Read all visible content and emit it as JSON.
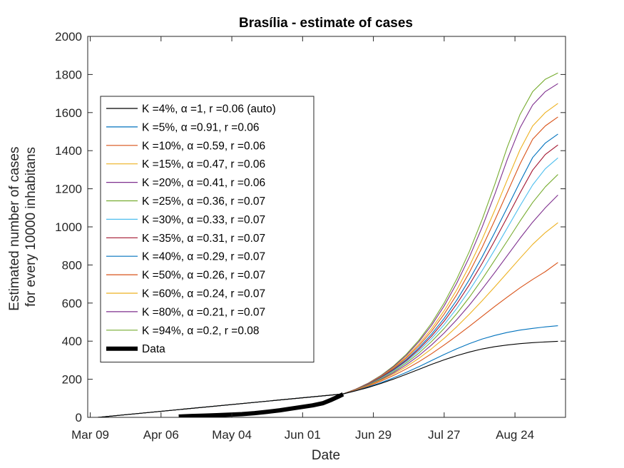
{
  "chart_data": {
    "type": "line",
    "title": "Brasília - estimate of cases",
    "xlabel": "Date",
    "ylabel": [
      "Estimated number of cases",
      "for every 10000 inhabitans"
    ],
    "x_ticks": [
      "Mar 09",
      "Apr 06",
      "May 04",
      "Jun 01",
      "Jun 29",
      "Jul 27",
      "Aug 24"
    ],
    "x_tick_days": [
      0,
      28,
      56,
      84,
      112,
      140,
      168
    ],
    "xlim_days": [
      -1,
      188
    ],
    "ylim": [
      0,
      2000
    ],
    "y_ticks": [
      0,
      200,
      400,
      600,
      800,
      1000,
      1200,
      1400,
      1600,
      1800,
      2000
    ],
    "legend_position": "left",
    "grid": false,
    "series": [
      {
        "name": "K =4%, α =1, r =0.06 (auto)",
        "color": "#000000",
        "x": [
          3,
          100,
          105,
          110,
          115,
          120,
          125,
          130,
          135,
          140,
          145,
          150,
          155,
          160,
          165,
          170,
          175,
          180,
          185
        ],
        "y": [
          0,
          123,
          139,
          157,
          178,
          201,
          226,
          252,
          278,
          302,
          324,
          343,
          359,
          371,
          380,
          387,
          392,
          396,
          399
        ]
      },
      {
        "name": "K =5%, α =0.91, r =0.06",
        "color": "#0072BD",
        "x": [
          3,
          100,
          105,
          110,
          115,
          120,
          125,
          130,
          135,
          140,
          145,
          150,
          155,
          160,
          165,
          170,
          175,
          180,
          185
        ],
        "y": [
          0,
          123,
          140,
          160,
          182,
          208,
          236,
          266,
          298,
          330,
          360,
          387,
          411,
          430,
          446,
          458,
          467,
          475,
          481
        ]
      },
      {
        "name": "K =10%, α =0.59, r =0.06",
        "color": "#D95319",
        "x": [
          3,
          100,
          105,
          110,
          115,
          120,
          125,
          130,
          135,
          140,
          145,
          150,
          155,
          160,
          165,
          170,
          175,
          180,
          185
        ],
        "y": [
          0,
          123,
          142,
          164,
          190,
          220,
          254,
          292,
          334,
          380,
          428,
          478,
          530,
          582,
          632,
          680,
          724,
          765,
          813
        ]
      },
      {
        "name": "K =15%, α =0.47, r =0.06",
        "color": "#EDB120",
        "x": [
          3,
          100,
          105,
          110,
          115,
          120,
          125,
          130,
          135,
          140,
          145,
          150,
          155,
          160,
          165,
          170,
          175,
          180,
          185
        ],
        "y": [
          0,
          123,
          143,
          167,
          195,
          228,
          266,
          310,
          360,
          415,
          476,
          542,
          612,
          685,
          760,
          835,
          908,
          970,
          1022
        ]
      },
      {
        "name": "K =20%, α =0.41, r =0.06",
        "color": "#7E2F8E",
        "x": [
          3,
          100,
          105,
          110,
          115,
          120,
          125,
          130,
          135,
          140,
          145,
          150,
          155,
          160,
          165,
          170,
          175,
          180,
          185
        ],
        "y": [
          0,
          123,
          144,
          169,
          198,
          234,
          276,
          324,
          380,
          443,
          513,
          590,
          673,
          760,
          850,
          940,
          1025,
          1100,
          1167
        ]
      },
      {
        "name": "K =25%, α =0.36, r =0.07",
        "color": "#77AC30",
        "x": [
          3,
          100,
          105,
          110,
          115,
          120,
          125,
          130,
          135,
          140,
          145,
          150,
          155,
          160,
          165,
          170,
          175,
          180,
          185
        ],
        "y": [
          0,
          123,
          145,
          171,
          202,
          240,
          285,
          337,
          398,
          467,
          545,
          631,
          725,
          825,
          927,
          1030,
          1128,
          1210,
          1275
        ]
      },
      {
        "name": "K =30%, α =0.33, r =0.07",
        "color": "#4DBEEE",
        "x": [
          3,
          100,
          105,
          110,
          115,
          120,
          125,
          130,
          135,
          140,
          145,
          150,
          155,
          160,
          165,
          170,
          175,
          180,
          185
        ],
        "y": [
          0,
          123,
          145,
          172,
          205,
          245,
          292,
          348,
          413,
          487,
          572,
          667,
          770,
          880,
          995,
          1110,
          1220,
          1305,
          1362
        ]
      },
      {
        "name": "K =35%, α =0.31, r =0.07",
        "color": "#A2142F",
        "x": [
          3,
          100,
          105,
          110,
          115,
          120,
          125,
          130,
          135,
          140,
          145,
          150,
          155,
          160,
          165,
          170,
          175,
          180,
          185
        ],
        "y": [
          0,
          123,
          146,
          174,
          208,
          249,
          298,
          357,
          426,
          505,
          596,
          697,
          808,
          928,
          1052,
          1178,
          1298,
          1380,
          1430
        ]
      },
      {
        "name": "K =40%, α =0.29, r =0.07",
        "color": "#0072BD",
        "x": [
          3,
          100,
          105,
          110,
          115,
          120,
          125,
          130,
          135,
          140,
          145,
          150,
          155,
          160,
          165,
          170,
          175,
          180,
          185
        ],
        "y": [
          0,
          123,
          146,
          175,
          210,
          252,
          303,
          365,
          437,
          520,
          616,
          724,
          842,
          970,
          1102,
          1236,
          1364,
          1440,
          1487
        ]
      },
      {
        "name": "K =50%, α =0.26, r =0.07",
        "color": "#D95319",
        "x": [
          3,
          100,
          105,
          110,
          115,
          120,
          125,
          130,
          135,
          140,
          145,
          150,
          155,
          160,
          165,
          170,
          175,
          180,
          185
        ],
        "y": [
          0,
          123,
          147,
          176,
          213,
          257,
          311,
          376,
          452,
          542,
          645,
          762,
          892,
          1034,
          1182,
          1330,
          1460,
          1530,
          1577
        ]
      },
      {
        "name": "K =60%, α =0.24, r =0.07",
        "color": "#EDB120",
        "x": [
          3,
          100,
          105,
          110,
          115,
          120,
          125,
          130,
          135,
          140,
          145,
          150,
          155,
          160,
          165,
          170,
          175,
          180,
          185
        ],
        "y": [
          0,
          123,
          147,
          177,
          215,
          261,
          317,
          385,
          465,
          560,
          670,
          795,
          934,
          1087,
          1248,
          1405,
          1530,
          1600,
          1648
        ]
      },
      {
        "name": "K =80%, α =0.21, r =0.07",
        "color": "#7E2F8E",
        "x": [
          3,
          100,
          105,
          110,
          115,
          120,
          125,
          130,
          135,
          140,
          145,
          150,
          155,
          160,
          165,
          170,
          175,
          180,
          185
        ],
        "y": [
          0,
          123,
          148,
          179,
          218,
          266,
          325,
          397,
          483,
          585,
          705,
          842,
          998,
          1170,
          1355,
          1520,
          1640,
          1710,
          1752
        ]
      },
      {
        "name": "K =94%, α =0.2, r =0.08",
        "color": "#77AC30",
        "x": [
          3,
          100,
          105,
          110,
          115,
          120,
          125,
          130,
          135,
          140,
          145,
          150,
          155,
          160,
          165,
          170,
          175,
          180,
          185
        ],
        "y": [
          0,
          123,
          148,
          180,
          220,
          270,
          331,
          405,
          494,
          601,
          727,
          872,
          1038,
          1222,
          1420,
          1590,
          1710,
          1775,
          1808
        ]
      },
      {
        "name": "Data",
        "color": "#000000",
        "role": "data",
        "x": [
          35,
          40,
          45,
          50,
          55,
          60,
          65,
          70,
          75,
          80,
          84,
          88,
          92,
          95,
          98,
          100
        ],
        "y": [
          4,
          7,
          9,
          11,
          14,
          17,
          22,
          29,
          37,
          47,
          55,
          63,
          74,
          90,
          108,
          121
        ]
      }
    ]
  }
}
